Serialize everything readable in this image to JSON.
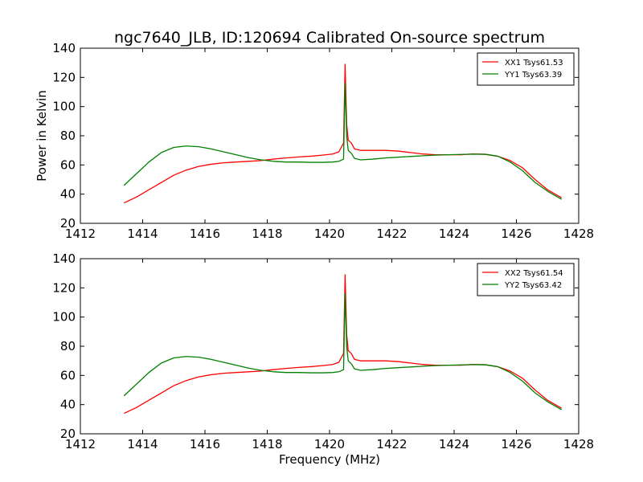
{
  "chart_data": [
    {
      "type": "line",
      "title": "ngc7640_JLB, ID:120694 Calibrated On-source spectrum",
      "xlabel": "",
      "ylabel": "Power in Kelvin",
      "xlim": [
        1412,
        1428
      ],
      "ylim": [
        20,
        140
      ],
      "xticks": [
        1412,
        1414,
        1416,
        1418,
        1420,
        1422,
        1424,
        1426,
        1428
      ],
      "yticks": [
        20,
        40,
        60,
        80,
        100,
        120,
        140
      ],
      "grid": false,
      "legend": "top-right",
      "series": [
        {
          "name": "XX1 Tsys61.53",
          "color": "#ff0000",
          "x": [
            1413.4,
            1413.8,
            1414.2,
            1414.6,
            1415.0,
            1415.4,
            1415.8,
            1416.2,
            1416.6,
            1417.0,
            1417.4,
            1417.8,
            1418.2,
            1418.6,
            1419.0,
            1419.4,
            1419.8,
            1420.1,
            1420.3,
            1420.45,
            1420.5,
            1420.55,
            1420.6,
            1420.7,
            1420.8,
            1421.0,
            1421.4,
            1421.8,
            1422.2,
            1422.6,
            1423.0,
            1423.4,
            1423.8,
            1424.2,
            1424.6,
            1425.0,
            1425.4,
            1425.8,
            1426.2,
            1426.6,
            1427.0,
            1427.45
          ],
          "y": [
            34,
            38,
            43,
            48,
            53,
            56.5,
            59,
            60.5,
            61.5,
            62,
            62.5,
            63,
            64,
            64.8,
            65.5,
            66,
            66.8,
            67.5,
            69,
            75,
            129,
            88,
            77,
            75,
            71,
            70,
            70,
            70,
            69.5,
            68.5,
            67.5,
            67,
            67,
            67,
            67.5,
            67.3,
            66,
            63,
            58,
            50,
            43,
            37.5
          ]
        },
        {
          "name": "YY1 Tsys63.39",
          "color": "#008000",
          "x": [
            1413.4,
            1413.8,
            1414.2,
            1414.6,
            1415.0,
            1415.4,
            1415.8,
            1416.2,
            1416.6,
            1417.0,
            1417.4,
            1417.8,
            1418.2,
            1418.6,
            1419.0,
            1419.4,
            1419.8,
            1420.1,
            1420.3,
            1420.45,
            1420.5,
            1420.55,
            1420.6,
            1420.7,
            1420.8,
            1421.0,
            1421.4,
            1421.8,
            1422.2,
            1422.6,
            1423.0,
            1423.4,
            1423.8,
            1424.2,
            1424.6,
            1425.0,
            1425.4,
            1425.8,
            1426.2,
            1426.6,
            1427.0,
            1427.45
          ],
          "y": [
            46,
            54,
            62,
            68.5,
            72,
            73,
            72.5,
            71,
            69,
            67,
            65,
            63.5,
            62.5,
            62,
            62,
            61.8,
            61.8,
            62,
            62.5,
            64,
            116,
            80,
            70,
            68,
            64.5,
            63.5,
            64,
            64.8,
            65.3,
            65.8,
            66.3,
            66.7,
            67,
            67.2,
            67.4,
            67.3,
            66,
            62,
            56,
            48,
            42,
            36.5
          ]
        }
      ]
    },
    {
      "type": "line",
      "title": "",
      "xlabel": "Frequency (MHz)",
      "ylabel": "",
      "xlim": [
        1412,
        1428
      ],
      "ylim": [
        20,
        140
      ],
      "xticks": [
        1412,
        1414,
        1416,
        1418,
        1420,
        1422,
        1424,
        1426,
        1428
      ],
      "yticks": [
        20,
        40,
        60,
        80,
        100,
        120,
        140
      ],
      "grid": false,
      "legend": "top-right",
      "series": [
        {
          "name": "XX2 Tsys61.54",
          "color": "#ff0000",
          "x": [
            1413.4,
            1413.8,
            1414.2,
            1414.6,
            1415.0,
            1415.4,
            1415.8,
            1416.2,
            1416.6,
            1417.0,
            1417.4,
            1417.8,
            1418.2,
            1418.6,
            1419.0,
            1419.4,
            1419.8,
            1420.1,
            1420.3,
            1420.45,
            1420.5,
            1420.55,
            1420.6,
            1420.7,
            1420.8,
            1421.0,
            1421.4,
            1421.8,
            1422.2,
            1422.6,
            1423.0,
            1423.4,
            1423.8,
            1424.2,
            1424.6,
            1425.0,
            1425.4,
            1425.8,
            1426.2,
            1426.6,
            1427.0,
            1427.45
          ],
          "y": [
            34,
            38,
            43,
            48,
            53,
            56.5,
            59,
            60.5,
            61.5,
            62,
            62.5,
            63,
            64,
            64.8,
            65.5,
            66,
            66.8,
            67.5,
            69,
            75,
            129,
            88,
            77,
            75,
            71,
            70,
            70,
            70,
            69.5,
            68.5,
            67.5,
            67,
            67,
            67,
            67.5,
            67.3,
            66,
            63,
            58,
            50,
            43,
            37.5
          ]
        },
        {
          "name": "YY2 Tsys63.42",
          "color": "#008000",
          "x": [
            1413.4,
            1413.8,
            1414.2,
            1414.6,
            1415.0,
            1415.4,
            1415.8,
            1416.2,
            1416.6,
            1417.0,
            1417.4,
            1417.8,
            1418.2,
            1418.6,
            1419.0,
            1419.4,
            1419.8,
            1420.1,
            1420.3,
            1420.45,
            1420.5,
            1420.55,
            1420.6,
            1420.7,
            1420.8,
            1421.0,
            1421.4,
            1421.8,
            1422.2,
            1422.6,
            1423.0,
            1423.4,
            1423.8,
            1424.2,
            1424.6,
            1425.0,
            1425.4,
            1425.8,
            1426.2,
            1426.6,
            1427.0,
            1427.45
          ],
          "y": [
            46,
            54,
            62,
            68.5,
            72,
            73,
            72.5,
            71,
            69,
            67,
            65,
            63.5,
            62.5,
            62,
            62,
            61.8,
            61.8,
            62,
            62.5,
            64,
            116,
            80,
            70,
            68,
            64.5,
            63.5,
            64,
            64.8,
            65.3,
            65.8,
            66.3,
            66.7,
            67,
            67.2,
            67.4,
            67.3,
            66,
            62,
            56,
            48,
            42,
            36.5
          ]
        }
      ]
    }
  ]
}
